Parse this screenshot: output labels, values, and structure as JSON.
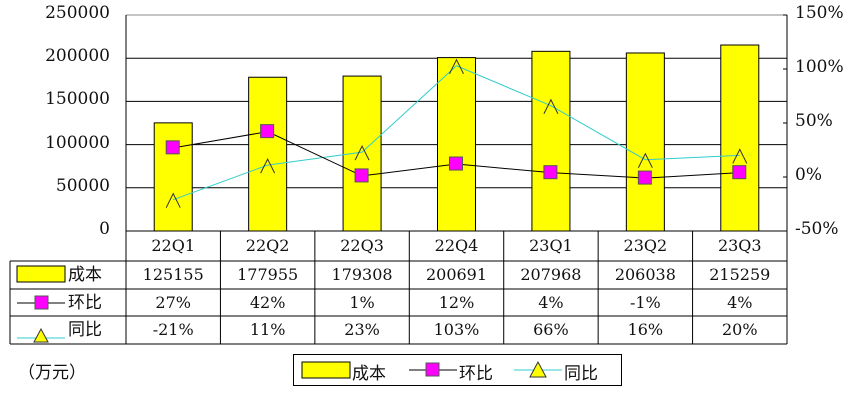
{
  "chart_data": {
    "type": "bar+line",
    "categories": [
      "22Q1",
      "22Q2",
      "22Q3",
      "22Q4",
      "23Q1",
      "23Q2",
      "23Q3"
    ],
    "series": [
      {
        "name": "成本",
        "type": "bar",
        "axis": "left",
        "values": [
          125155,
          177955,
          179308,
          200691,
          207968,
          206038,
          215259
        ],
        "color": "#FFFF00"
      },
      {
        "name": "环比",
        "type": "line",
        "axis": "right",
        "values": [
          27,
          42,
          1,
          12,
          4,
          -1,
          4
        ],
        "unit": "%",
        "color": "#000000",
        "marker": "square",
        "marker_color": "#FF00FF"
      },
      {
        "name": "同比",
        "type": "line",
        "axis": "right",
        "values": [
          -21,
          11,
          23,
          103,
          66,
          16,
          20
        ],
        "unit": "%",
        "color": "#33CCCC",
        "marker": "triangle",
        "marker_color": "#FFFF00"
      }
    ],
    "left_axis": {
      "ticks": [
        "250000",
        "200000",
        "150000",
        "100000",
        "50000",
        "0"
      ],
      "ylim": [
        0,
        250000
      ]
    },
    "right_axis": {
      "ticks": [
        "150%",
        "100%",
        "50%",
        "0%",
        "-50%"
      ],
      "ylim": [
        -50,
        150
      ]
    },
    "unit_label": "（万元）",
    "grid": true,
    "legend_position": "bottom",
    "data_table": true
  },
  "table": {
    "rows": [
      {
        "label": "成本",
        "values": [
          "125155",
          "177955",
          "179308",
          "200691",
          "207968",
          "206038",
          "215259"
        ]
      },
      {
        "label": "环比",
        "values": [
          "27%",
          "42%",
          "1%",
          "12%",
          "4%",
          "-1%",
          "4%"
        ]
      },
      {
        "label": "同比",
        "values": [
          "-21%",
          "11%",
          "23%",
          "103%",
          "66%",
          "16%",
          "20%"
        ]
      }
    ]
  },
  "legend": {
    "items": [
      "成本",
      "环比",
      "同比"
    ]
  },
  "unit": "（万元）"
}
